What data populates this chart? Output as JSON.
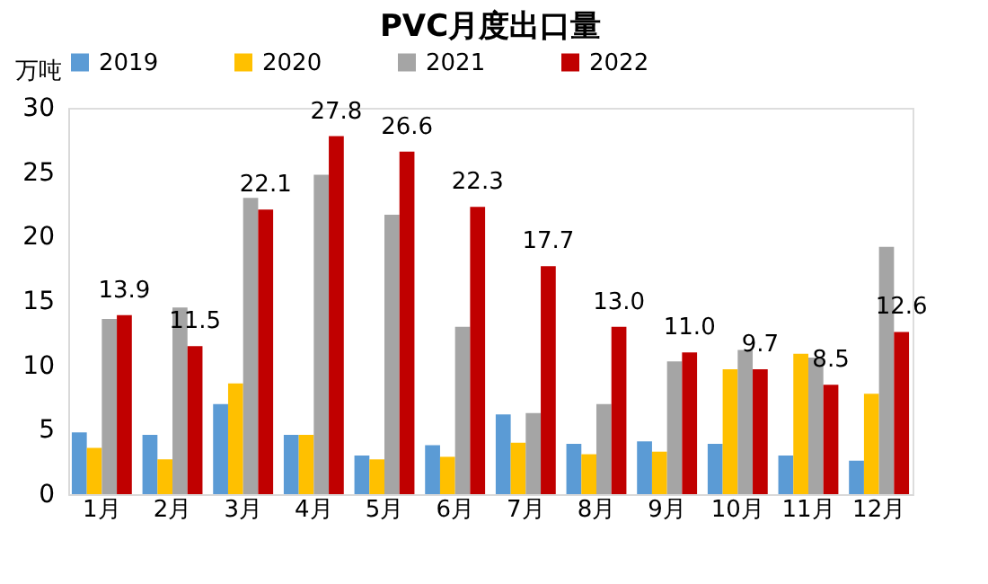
{
  "chart_data": {
    "type": "bar",
    "title": "PVC月度出口量",
    "ylabel": "万吨",
    "categories": [
      "1月",
      "2月",
      "3月",
      "4月",
      "5月",
      "6月",
      "7月",
      "8月",
      "9月",
      "10月",
      "11月",
      "12月"
    ],
    "series": [
      {
        "name": "2019",
        "color": "#5b9bd5",
        "values": [
          4.8,
          4.6,
          7.0,
          4.6,
          3.0,
          3.8,
          6.2,
          3.9,
          4.1,
          3.9,
          3.0,
          2.6
        ]
      },
      {
        "name": "2020",
        "color": "#ffc000",
        "values": [
          3.6,
          2.7,
          8.6,
          4.6,
          2.7,
          2.9,
          4.0,
          3.1,
          3.3,
          9.7,
          10.9,
          7.8
        ]
      },
      {
        "name": "2021",
        "color": "#a5a5a5",
        "values": [
          13.6,
          14.5,
          23.0,
          24.8,
          21.7,
          13.0,
          6.3,
          7.0,
          10.3,
          11.2,
          10.6,
          19.2
        ]
      },
      {
        "name": "2022",
        "color": "#c00000",
        "values": [
          13.9,
          11.5,
          22.1,
          27.8,
          26.6,
          22.3,
          17.7,
          13.0,
          11.0,
          9.7,
          8.5,
          12.6
        ],
        "value_labels": [
          "13.9",
          "11.5",
          "22.1",
          "27.8",
          "26.6",
          "22.3",
          "17.7",
          "13.0",
          "11.0",
          "9.7",
          "8.5",
          "12.6"
        ]
      }
    ],
    "ylim": [
      0,
      30
    ],
    "yticks": [
      0,
      5,
      10,
      15,
      20,
      25,
      30
    ],
    "legend": "top",
    "grid": false
  }
}
